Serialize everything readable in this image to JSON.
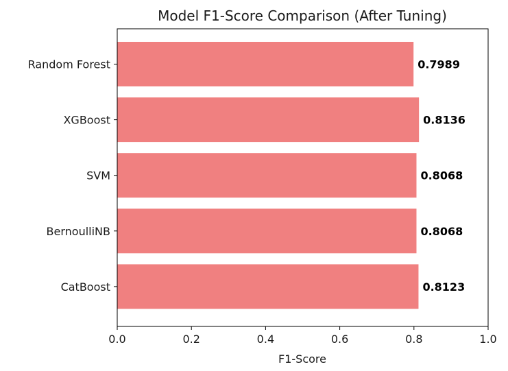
{
  "chart_data": {
    "type": "bar",
    "orientation": "horizontal",
    "title": "Model F1-Score Comparison (After Tuning)",
    "xlabel": "F1-Score",
    "ylabel": "",
    "categories": [
      "Random Forest",
      "XGBoost",
      "SVM",
      "BernoulliNB",
      "CatBoost"
    ],
    "values": [
      0.7989,
      0.8136,
      0.8068,
      0.8068,
      0.8123
    ],
    "value_labels": [
      "0.7989",
      "0.8136",
      "0.8068",
      "0.8068",
      "0.8123"
    ],
    "xlim": [
      0.0,
      1.0
    ],
    "xticks": [
      0.0,
      0.2,
      0.4,
      0.6,
      0.8,
      1.0
    ],
    "xtick_labels": [
      "0.0",
      "0.2",
      "0.4",
      "0.6",
      "0.8",
      "1.0"
    ],
    "grid": false,
    "bar_color": "#f08080"
  }
}
